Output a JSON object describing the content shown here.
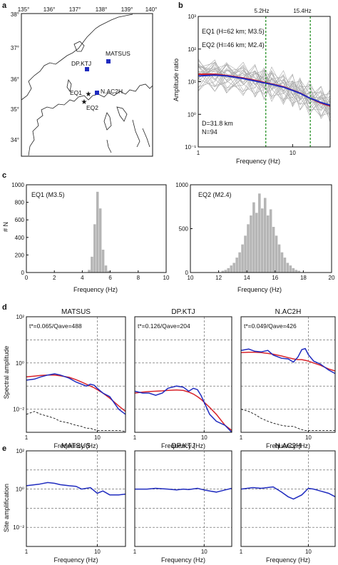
{
  "figure": {
    "panel_labels": {
      "a": "a",
      "b": "b",
      "c": "c",
      "d": "d",
      "e": "e"
    }
  },
  "map": {
    "lon_ticks": [
      "135°",
      "136°",
      "137°",
      "138°",
      "139°",
      "140°"
    ],
    "lat_ticks": [
      "38°",
      "37°",
      "36°",
      "35°",
      "34°"
    ],
    "stations": [
      {
        "name": "MATSUS",
        "color": "#1f2bbf"
      },
      {
        "name": "DP.KTJ",
        "color": "#1f2bbf"
      },
      {
        "name": "N.AC2H",
        "color": "#1f2bbf"
      }
    ],
    "events": [
      {
        "name": "EQ1",
        "color": "#d8232a"
      },
      {
        "name": "EQ2",
        "color": "#d8232a"
      }
    ]
  },
  "chart_data": [
    {
      "panel": "b",
      "type": "line",
      "xlabel": "Frequency (Hz)",
      "ylabel": "Amplitude ratio",
      "x_scale": "log",
      "y_scale": "log",
      "xlim": [
        1,
        25
      ],
      "ylim": [
        0.1,
        1000
      ],
      "x_ticks": [
        "1",
        "10"
      ],
      "y_ticks": [
        "10³",
        "10²",
        "10¹",
        "10⁰",
        "10⁻¹"
      ],
      "annotations": [
        "EQ1 (H=62 km; M3.5)",
        "EQ2 (H=46 km; M2.4)",
        "D=31.8 km",
        "N=94"
      ],
      "vlines": [
        {
          "x": 5.2,
          "label": "5.2Hz"
        },
        {
          "x": 15.4,
          "label": "15.4Hz"
        }
      ],
      "series": [
        {
          "x": [
            1,
            1.5,
            2,
            3,
            4,
            5,
            6,
            8,
            10,
            12,
            15,
            20,
            25
          ],
          "values": [
            17,
            17,
            15.5,
            13,
            11,
            9.5,
            8.5,
            7,
            5.5,
            4.5,
            3.2,
            2.2,
            1.8
          ]
        },
        {
          "x": [
            1,
            1.5,
            2,
            3,
            4,
            5,
            6,
            8,
            10,
            12,
            15,
            20,
            25
          ],
          "values": [
            15,
            16,
            15,
            12.5,
            10.5,
            9.2,
            8.3,
            6.8,
            5.4,
            4.4,
            3.2,
            2.3,
            1.9
          ]
        }
      ]
    },
    {
      "panel": "c-left",
      "type": "bar",
      "title": "EQ1 (M3.5)",
      "xlabel": "Frequency (Hz)",
      "ylabel": "# N",
      "xlim": [
        0,
        10
      ],
      "ylim": [
        0,
        1000
      ],
      "x_ticks": [
        "0",
        "2",
        "4",
        "6",
        "8",
        "10"
      ],
      "y_ticks": [
        "0",
        "200",
        "400",
        "600",
        "800",
        "1000"
      ],
      "bin_centers": [
        4.5,
        4.7,
        4.9,
        5.1,
        5.3,
        5.5,
        5.7,
        5.9
      ],
      "values": [
        30,
        180,
        550,
        920,
        730,
        260,
        80,
        20
      ]
    },
    {
      "panel": "c-right",
      "type": "bar",
      "title": "EQ2 (M2.4)",
      "xlabel": "Frequency (Hz)",
      "xlim": [
        10,
        20
      ],
      "ylim": [
        0,
        1000
      ],
      "x_ticks": [
        "10",
        "12",
        "14",
        "16",
        "18",
        "20"
      ],
      "y_ticks": [
        "0",
        "500",
        "1000"
      ],
      "bin_centers": [
        12.3,
        12.5,
        12.7,
        12.9,
        13.1,
        13.3,
        13.5,
        13.7,
        13.9,
        14.1,
        14.3,
        14.5,
        14.7,
        14.9,
        15.1,
        15.3,
        15.5,
        15.7,
        15.9,
        16.1,
        16.3,
        16.5,
        16.7,
        16.9,
        17.1,
        17.3,
        17.5,
        17.7
      ],
      "values": [
        20,
        30,
        50,
        80,
        110,
        170,
        230,
        320,
        420,
        550,
        650,
        800,
        680,
        900,
        730,
        850,
        650,
        720,
        520,
        420,
        320,
        230,
        170,
        110,
        80,
        50,
        30,
        20
      ]
    },
    {
      "panel": "d",
      "type": "line",
      "xlabel": "Frequency (Hz)",
      "ylabel": "Spectral amplitude",
      "x_scale": "log",
      "y_scale": "log",
      "xlim": [
        1,
        25
      ],
      "ylim": [
        0.001,
        100
      ],
      "x_ticks": [
        "1",
        "10"
      ],
      "y_ticks": [
        "10²",
        "10⁰",
        "10⁻²"
      ],
      "subplots": [
        {
          "title": "MATSUS",
          "annotation": "t*=0.065/Qave=488",
          "x": [
            1,
            1.3,
            1.6,
            2,
            2.5,
            3,
            4,
            5,
            6,
            7,
            8,
            9,
            10,
            12,
            15,
            20,
            25
          ],
          "blue": [
            0.18,
            0.2,
            0.25,
            0.3,
            0.34,
            0.3,
            0.22,
            0.15,
            0.12,
            0.1,
            0.12,
            0.11,
            0.08,
            0.05,
            0.035,
            0.01,
            0.006
          ],
          "red": [
            0.25,
            0.27,
            0.29,
            0.3,
            0.3,
            0.28,
            0.24,
            0.19,
            0.15,
            0.12,
            0.1,
            0.085,
            0.07,
            0.05,
            0.03,
            0.014,
            0.008
          ],
          "black": [
            0.006,
            0.008,
            0.006,
            0.005,
            0.004,
            0.003,
            0.0025,
            0.002,
            0.0018,
            0.0015,
            0.0015,
            0.0013,
            0.0012,
            0.0012,
            0.0012,
            0.0012,
            0.0011
          ]
        },
        {
          "title": "DP.KTJ",
          "annotation": "t*=0.126/Qave=204",
          "x": [
            1,
            1.3,
            1.6,
            2,
            2.5,
            3,
            4,
            5,
            6,
            7,
            8,
            9,
            10,
            12,
            15,
            20,
            25
          ],
          "blue": [
            0.06,
            0.05,
            0.05,
            0.04,
            0.05,
            0.08,
            0.1,
            0.09,
            0.06,
            0.08,
            0.07,
            0.04,
            0.02,
            0.006,
            0.003,
            0.002,
            0.001
          ],
          "red": [
            0.05,
            0.055,
            0.058,
            0.06,
            0.062,
            0.065,
            0.068,
            0.065,
            0.055,
            0.045,
            0.035,
            0.027,
            0.02,
            0.012,
            0.006,
            0.002,
            0.0012
          ],
          "black": []
        },
        {
          "title": "N.AC2H",
          "annotation": "t*=0.049/Qave=426",
          "x": [
            1,
            1.3,
            1.6,
            2,
            2.5,
            3,
            4,
            5,
            6,
            7,
            8,
            9,
            10,
            12,
            15,
            20,
            25
          ],
          "blue": [
            3.5,
            4,
            3.2,
            3,
            3.5,
            2.2,
            1.6,
            1.5,
            1.1,
            1.8,
            3.8,
            4.2,
            2.3,
            1.2,
            0.9,
            0.5,
            0.35
          ],
          "red": [
            2.8,
            2.9,
            2.9,
            2.8,
            2.6,
            2.4,
            2.0,
            1.7,
            1.5,
            1.4,
            1.4,
            1.3,
            1.2,
            1.0,
            0.8,
            0.55,
            0.45
          ],
          "black": [
            0.01,
            0.008,
            0.006,
            0.004,
            0.003,
            0.0025,
            0.002,
            0.0018,
            0.0018,
            0.0015,
            0.0013,
            0.0012,
            0.0012,
            0.0012,
            0.0012,
            0.0012,
            0.0012
          ]
        }
      ]
    },
    {
      "panel": "e",
      "type": "line",
      "xlabel": "Frequency (Hz)",
      "ylabel": "Site amplification",
      "x_scale": "log",
      "y_scale": "log",
      "xlim": [
        1,
        25
      ],
      "ylim": [
        0.001,
        100
      ],
      "x_ticks": [
        "1",
        "10"
      ],
      "y_ticks": [
        "10²",
        "10⁰",
        "10⁻²"
      ],
      "subplots": [
        {
          "title": "MATSUS",
          "x": [
            1,
            1.5,
            2,
            2.5,
            3,
            4,
            5,
            6,
            8,
            10,
            12,
            15,
            20,
            25
          ],
          "blue": [
            1.5,
            1.8,
            2.2,
            2.0,
            1.7,
            1.5,
            1.4,
            1.0,
            1.2,
            0.6,
            0.8,
            0.5,
            0.5,
            0.55
          ]
        },
        {
          "title": "DP.KTJ",
          "x": [
            1,
            1.5,
            2,
            3,
            4,
            5,
            6,
            8,
            10,
            12,
            15,
            20,
            25
          ],
          "blue": [
            1.0,
            1.0,
            1.1,
            1.0,
            0.9,
            1.0,
            0.95,
            1.1,
            0.9,
            0.8,
            0.7,
            0.9,
            1.1
          ]
        },
        {
          "title": "N.AC2H",
          "x": [
            1,
            1.5,
            2,
            3,
            4,
            5,
            6,
            8,
            10,
            12,
            15,
            20,
            25
          ],
          "blue": [
            1.0,
            1.2,
            1.1,
            1.3,
            0.7,
            0.4,
            0.3,
            0.5,
            1.1,
            1.0,
            0.8,
            0.6,
            0.4
          ]
        }
      ]
    }
  ]
}
